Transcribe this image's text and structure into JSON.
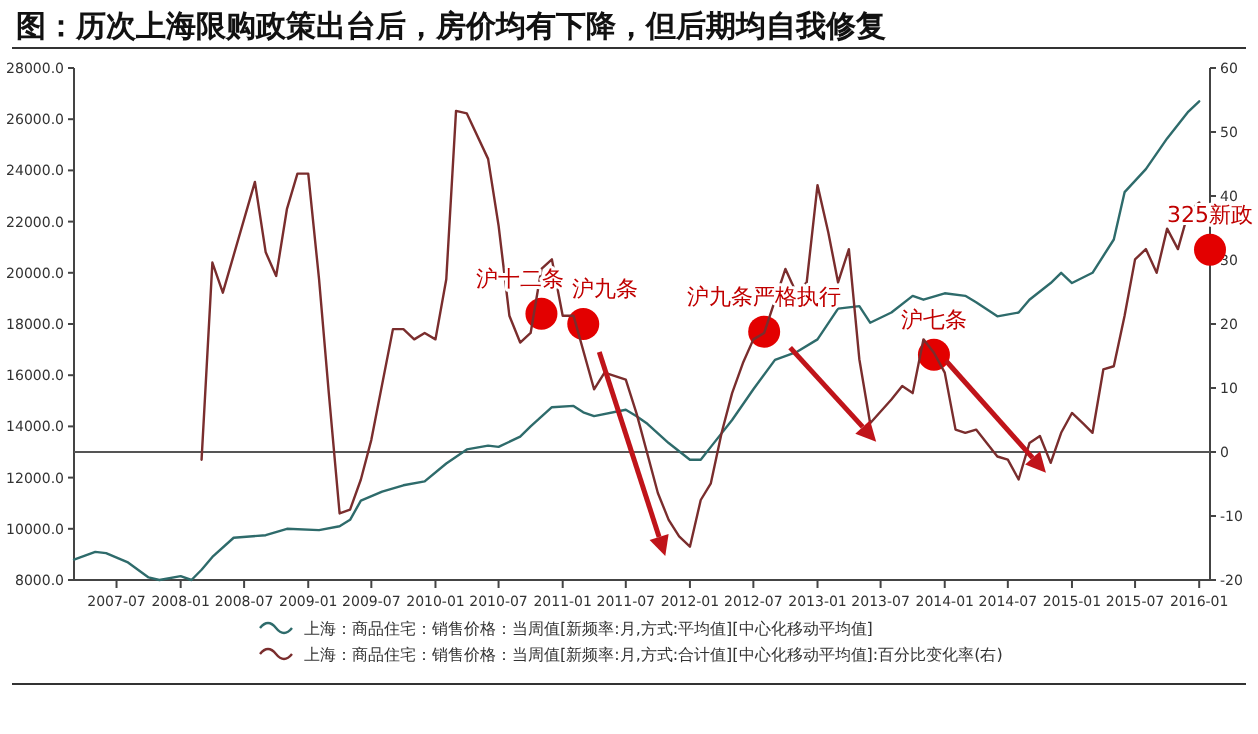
{
  "chart_data": {
    "type": "line",
    "title": "图：历次上海限购政策出台后，房价均有下降，但后期均自我修复",
    "xlim": [
      "2007-03",
      "2016-02"
    ],
    "xticks": [
      "2007-07",
      "2008-01",
      "2008-07",
      "2009-01",
      "2009-07",
      "2010-01",
      "2010-07",
      "2011-01",
      "2011-07",
      "2012-01",
      "2012-07",
      "2013-01",
      "2013-07",
      "2014-01",
      "2014-07",
      "2015-01",
      "2015-07",
      "2016-01"
    ],
    "ylim": [
      8000,
      28000
    ],
    "yticks": [
      {
        "value": 8000,
        "label": "8000.0"
      },
      {
        "value": 10000,
        "label": "10000.0"
      },
      {
        "value": 12000,
        "label": "12000.0"
      },
      {
        "value": 14000,
        "label": "14000.0"
      },
      {
        "value": 16000,
        "label": "16000.0"
      },
      {
        "value": 18000,
        "label": "18000.0"
      },
      {
        "value": 20000,
        "label": "20000.0"
      },
      {
        "value": 22000,
        "label": "22000.0"
      },
      {
        "value": 24000,
        "label": "24000.0"
      },
      {
        "value": 26000,
        "label": "26000.0"
      },
      {
        "value": 28000,
        "label": "28000.0"
      }
    ],
    "y2lim": [
      -20,
      60
    ],
    "y2ticks": [
      -20,
      -10,
      0,
      10,
      20,
      30,
      40,
      50,
      60
    ],
    "legend": "bottom",
    "series": [
      {
        "name": "上海：商品住宅：销售价格：当周值[新频率:月,方式:平均值][中心化移动平均值]",
        "color": "#2e6b6b",
        "x": [
          "2007-03",
          "2007-05",
          "2007-06",
          "2007-08",
          "2007-10",
          "2007-11",
          "2008-01",
          "2008-02",
          "2008-03",
          "2008-04",
          "2008-06",
          "2008-09",
          "2008-11",
          "2009-02",
          "2009-04",
          "2009-05",
          "2009-06",
          "2009-08",
          "2009-10",
          "2009-12",
          "2010-02",
          "2010-04",
          "2010-06",
          "2010-07",
          "2010-09",
          "2010-10",
          "2010-12",
          "2011-02",
          "2011-03",
          "2011-04",
          "2011-07",
          "2011-08",
          "2011-09",
          "2011-11",
          "2012-01",
          "2012-02",
          "2012-03",
          "2012-05",
          "2012-07",
          "2012-09",
          "2012-11",
          "2013-01",
          "2013-03",
          "2013-05",
          "2013-06",
          "2013-08",
          "2013-10",
          "2013-11",
          "2014-01",
          "2014-03",
          "2014-04",
          "2014-06",
          "2014-08",
          "2014-09",
          "2014-11",
          "2014-12",
          "2015-01",
          "2015-03",
          "2015-05",
          "2015-06",
          "2015-08",
          "2015-10",
          "2015-12",
          "2016-01"
        ],
        "values": [
          8800,
          9100,
          9050,
          8700,
          8100,
          8000,
          8150,
          8000,
          8400,
          8900,
          9650,
          9750,
          10000,
          9950,
          10100,
          10350,
          11100,
          11450,
          11700,
          11850,
          12550,
          13100,
          13250,
          13200,
          13600,
          14000,
          14750,
          14800,
          14550,
          14400,
          14650,
          14400,
          14100,
          13350,
          12700,
          12700,
          13200,
          14250,
          15450,
          16600,
          16900,
          17400,
          18600,
          18700,
          18050,
          18450,
          19100,
          18950,
          19200,
          19100,
          18850,
          18300,
          18450,
          18950,
          19600,
          20000,
          19600,
          20000,
          21300,
          23150,
          24050,
          25250,
          26300,
          26700
        ]
      },
      {
        "name": "上海：商品住宅：销售价格：当周值[新频率:月,方式:合计值][中心化移动平均值]:百分比变化率(右)",
        "color": "#7a2d2d",
        "axis": "y2",
        "x": [
          "2008-03",
          "2008-04",
          "2008-05",
          "2008-08",
          "2008-09",
          "2008-10",
          "2008-11",
          "2008-12",
          "2009-01",
          "2009-02",
          "2009-03",
          "2009-04",
          "2009-05",
          "2009-06",
          "2009-07",
          "2009-09",
          "2009-10",
          "2009-11",
          "2009-12",
          "2010-01",
          "2010-02",
          "2010-03",
          "2010-04",
          "2010-06",
          "2010-07",
          "2010-08",
          "2010-09",
          "2010-10",
          "2010-11",
          "2010-12",
          "2011-01",
          "2011-02",
          "2011-04",
          "2011-05",
          "2011-07",
          "2011-08",
          "2011-10",
          "2011-11",
          "2011-12",
          "2012-01",
          "2012-02",
          "2012-03",
          "2012-04",
          "2012-05",
          "2012-06",
          "2012-07",
          "2012-08",
          "2012-10",
          "2012-11",
          "2012-12",
          "2013-01",
          "2013-02",
          "2013-03",
          "2013-04",
          "2013-05",
          "2013-06",
          "2013-08",
          "2013-09",
          "2013-10",
          "2013-11",
          "2013-12",
          "2014-01",
          "2014-02",
          "2014-03",
          "2014-04",
          "2014-06",
          "2014-07",
          "2014-08",
          "2014-09",
          "2014-10",
          "2014-11",
          "2014-12",
          "2015-01",
          "2015-02",
          "2015-03",
          "2015-04",
          "2015-05",
          "2015-06",
          "2015-07",
          "2015-08",
          "2015-09",
          "2015-10",
          "2015-11",
          "2015-12",
          "2016-01"
        ],
        "values": [
          -1.2,
          29.6,
          24.9,
          42.2,
          31.2,
          27.5,
          38,
          43.5,
          43.5,
          27,
          9.2,
          -9.6,
          -9,
          -4.3,
          1.9,
          19.2,
          19.2,
          17.6,
          18.6,
          17.6,
          27,
          53.3,
          52.9,
          45.8,
          35.4,
          21.3,
          17.1,
          18.6,
          28.6,
          30.1,
          21.3,
          21.3,
          9.8,
          12.4,
          11.3,
          6,
          -6.4,
          -10.6,
          -13.2,
          -14.8,
          -7.5,
          -4.9,
          3,
          9.2,
          13.9,
          17.6,
          18.6,
          28.6,
          24.9,
          26.5,
          41.7,
          34.3,
          26.5,
          31.7,
          14.5,
          4.5,
          8.2,
          10.3,
          9.2,
          17.6,
          15.5,
          12.4,
          3.5,
          3,
          3.5,
          -0.7,
          -1.2,
          -4.3,
          1.4,
          2.5,
          -1.7,
          3,
          6.1,
          4.5,
          3,
          12.9,
          13.4,
          21.3,
          30.1,
          31.7,
          28,
          34.9,
          31.7,
          37.5,
          39
        ]
      }
    ],
    "ref_lines": [
      {
        "axis": "y2",
        "value": 0,
        "color": "#555555"
      }
    ],
    "annotations": [
      {
        "text": "沪十二条",
        "x": "2010-11",
        "y": 18400
      },
      {
        "text": "沪九条",
        "x": "2011-03",
        "y": 18000
      },
      {
        "text": "沪九条严格执行",
        "x": "2012-08",
        "y": 17700
      },
      {
        "text": "沪七条",
        "x": "2013-12",
        "y": 16800
      },
      {
        "text": "325新政",
        "x": "2016-02",
        "y": 20900
      }
    ]
  }
}
